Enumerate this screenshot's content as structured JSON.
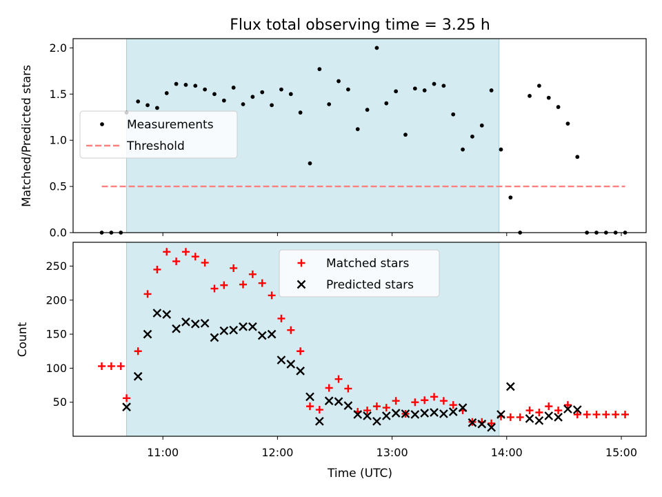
{
  "chart_data": {
    "title": "Flux total observing time = 3.25 h",
    "shaded_interval": [
      "10:41",
      "13:56"
    ],
    "x_axis": {
      "label": "Time (UTC)",
      "ticks": [
        "11:00",
        "12:00",
        "13:00",
        "14:00",
        "15:00"
      ],
      "range": [
        "10:13",
        "15:13"
      ]
    },
    "panels": [
      {
        "type": "scatter",
        "ylabel": "Matched/Predicted stars",
        "ylim": [
          0,
          2.1
        ],
        "yticks": [
          "0.0",
          "0.5",
          "1.0",
          "1.5",
          "2.0"
        ],
        "legend_position": "center-left",
        "series": [
          {
            "name": "Measurements",
            "marker": "dot",
            "color": "#000000",
            "points": [
              [
                "10:28",
                0.0
              ],
              [
                "10:33",
                0.0
              ],
              [
                "10:38",
                0.0
              ],
              [
                "10:41",
                1.3
              ],
              [
                "10:47",
                1.42
              ],
              [
                "10:52",
                1.38
              ],
              [
                "10:57",
                1.35
              ],
              [
                "11:02",
                1.51
              ],
              [
                "11:07",
                1.61
              ],
              [
                "11:12",
                1.6
              ],
              [
                "11:17",
                1.59
              ],
              [
                "11:22",
                1.55
              ],
              [
                "11:27",
                1.5
              ],
              [
                "11:32",
                1.43
              ],
              [
                "11:37",
                1.57
              ],
              [
                "11:42",
                1.39
              ],
              [
                "11:47",
                1.47
              ],
              [
                "11:52",
                1.52
              ],
              [
                "11:57",
                1.38
              ],
              [
                "12:02",
                1.55
              ],
              [
                "12:07",
                1.5
              ],
              [
                "12:12",
                1.3
              ],
              [
                "12:17",
                0.75
              ],
              [
                "12:22",
                1.77
              ],
              [
                "12:27",
                1.39
              ],
              [
                "12:32",
                1.64
              ],
              [
                "12:37",
                1.55
              ],
              [
                "12:42",
                1.12
              ],
              [
                "12:47",
                1.33
              ],
              [
                "12:52",
                2.0
              ],
              [
                "12:57",
                1.4
              ],
              [
                "13:02",
                1.53
              ],
              [
                "13:07",
                1.06
              ],
              [
                "13:12",
                1.56
              ],
              [
                "13:17",
                1.54
              ],
              [
                "13:22",
                1.61
              ],
              [
                "13:27",
                1.59
              ],
              [
                "13:32",
                1.28
              ],
              [
                "13:37",
                0.9
              ],
              [
                "13:42",
                1.04
              ],
              [
                "13:47",
                1.16
              ],
              [
                "13:52",
                1.54
              ],
              [
                "13:57",
                0.9
              ],
              [
                "14:02",
                0.38
              ],
              [
                "14:07",
                0.0
              ],
              [
                "14:12",
                1.48
              ],
              [
                "14:17",
                1.59
              ],
              [
                "14:22",
                1.46
              ],
              [
                "14:27",
                1.36
              ],
              [
                "14:32",
                1.18
              ],
              [
                "14:37",
                0.82
              ],
              [
                "14:42",
                0.0
              ],
              [
                "14:47",
                0.0
              ],
              [
                "14:52",
                0.0
              ],
              [
                "14:57",
                0.0
              ],
              [
                "15:02",
                0.0
              ]
            ]
          },
          {
            "name": "Threshold",
            "marker": "dashed-line",
            "color": "#ff7f7f",
            "value": 0.5,
            "x_range": [
              "10:28",
              "15:02"
            ]
          }
        ]
      },
      {
        "type": "scatter",
        "ylabel": "Count",
        "ylim": [
          0,
          285
        ],
        "yticks": [
          "50",
          "100",
          "150",
          "200",
          "250"
        ],
        "legend_position": "upper-center",
        "series": [
          {
            "name": "Matched stars",
            "marker": "plus",
            "color": "#ff0000",
            "points": [
              [
                "10:28",
                103
              ],
              [
                "10:33",
                103
              ],
              [
                "10:38",
                103
              ],
              [
                "10:41",
                56
              ],
              [
                "10:47",
                125
              ],
              [
                "10:52",
                209
              ],
              [
                "10:57",
                245
              ],
              [
                "11:02",
                271
              ],
              [
                "11:07",
                257
              ],
              [
                "11:12",
                271
              ],
              [
                "11:17",
                264
              ],
              [
                "11:22",
                255
              ],
              [
                "11:27",
                217
              ],
              [
                "11:32",
                222
              ],
              [
                "11:37",
                247
              ],
              [
                "11:42",
                223
              ],
              [
                "11:47",
                238
              ],
              [
                "11:52",
                225
              ],
              [
                "11:57",
                207
              ],
              [
                "12:02",
                173
              ],
              [
                "12:07",
                156
              ],
              [
                "12:12",
                125
              ],
              [
                "12:17",
                44
              ],
              [
                "12:22",
                39
              ],
              [
                "12:27",
                71
              ],
              [
                "12:32",
                84
              ],
              [
                "12:37",
                70
              ],
              [
                "12:42",
                36
              ],
              [
                "12:47",
                38
              ],
              [
                "12:52",
                44
              ],
              [
                "12:57",
                42
              ],
              [
                "13:02",
                52
              ],
              [
                "13:07",
                33
              ],
              [
                "13:12",
                50
              ],
              [
                "13:17",
                53
              ],
              [
                "13:22",
                58
              ],
              [
                "13:27",
                52
              ],
              [
                "13:32",
                46
              ],
              [
                "13:37",
                38
              ],
              [
                "13:42",
                21
              ],
              [
                "13:47",
                21
              ],
              [
                "13:52",
                19
              ],
              [
                "13:57",
                29
              ],
              [
                "14:02",
                28
              ],
              [
                "14:07",
                28
              ],
              [
                "14:12",
                38
              ],
              [
                "14:17",
                35
              ],
              [
                "14:22",
                44
              ],
              [
                "14:27",
                38
              ],
              [
                "14:32",
                46
              ],
              [
                "14:37",
                32
              ],
              [
                "14:42",
                32
              ],
              [
                "14:47",
                32
              ],
              [
                "14:52",
                32
              ],
              [
                "14:57",
                32
              ],
              [
                "15:02",
                32
              ]
            ]
          },
          {
            "name": "Predicted stars",
            "marker": "x",
            "color": "#000000",
            "points": [
              [
                "10:41",
                43
              ],
              [
                "10:47",
                88
              ],
              [
                "10:52",
                150
              ],
              [
                "10:57",
                181
              ],
              [
                "11:02",
                179
              ],
              [
                "11:07",
                158
              ],
              [
                "11:12",
                168
              ],
              [
                "11:17",
                165
              ],
              [
                "11:22",
                166
              ],
              [
                "11:27",
                145
              ],
              [
                "11:32",
                155
              ],
              [
                "11:37",
                156
              ],
              [
                "11:42",
                161
              ],
              [
                "11:47",
                161
              ],
              [
                "11:52",
                148
              ],
              [
                "11:57",
                150
              ],
              [
                "12:02",
                112
              ],
              [
                "12:07",
                106
              ],
              [
                "12:12",
                96
              ],
              [
                "12:17",
                58
              ],
              [
                "12:22",
                22
              ],
              [
                "12:27",
                52
              ],
              [
                "12:32",
                51
              ],
              [
                "12:37",
                45
              ],
              [
                "12:42",
                32
              ],
              [
                "12:47",
                30
              ],
              [
                "12:52",
                22
              ],
              [
                "12:57",
                30
              ],
              [
                "13:02",
                34
              ],
              [
                "13:07",
                33
              ],
              [
                "13:12",
                32
              ],
              [
                "13:17",
                34
              ],
              [
                "13:22",
                35
              ],
              [
                "13:27",
                33
              ],
              [
                "13:32",
                36
              ],
              [
                "13:37",
                42
              ],
              [
                "13:42",
                20
              ],
              [
                "13:47",
                18
              ],
              [
                "13:52",
                13
              ],
              [
                "13:57",
                32
              ],
              [
                "14:02",
                73
              ],
              [
                "14:12",
                26
              ],
              [
                "14:17",
                23
              ],
              [
                "14:22",
                30
              ],
              [
                "14:27",
                28
              ],
              [
                "14:32",
                40
              ],
              [
                "14:37",
                39
              ]
            ]
          }
        ]
      }
    ]
  }
}
